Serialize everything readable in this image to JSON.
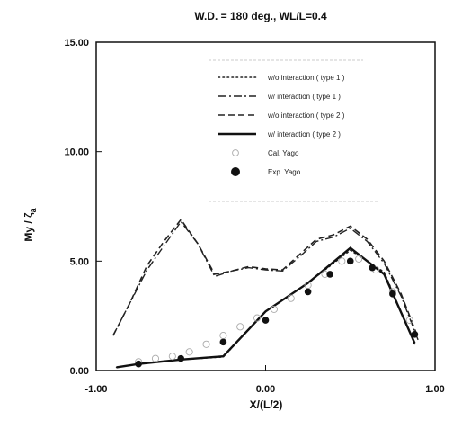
{
  "chart_data": {
    "type": "line",
    "title": "W.D. = 180 deg., WL/L=0.4",
    "xlabel": "X/(L/2)",
    "ylabel_main": "My / ζ",
    "ylabel_sub": "a",
    "xlim": [
      -1.0,
      1.0
    ],
    "ylim": [
      0.0,
      15.0
    ],
    "x_ticks": [
      -1.0,
      0.0,
      1.0
    ],
    "x_tick_labels": [
      "-1.00",
      "0.00",
      "1.00"
    ],
    "y_ticks": [
      0,
      5,
      10,
      15
    ],
    "y_tick_labels": [
      "0.00",
      "5.00",
      "10.00",
      "15.00"
    ],
    "grid": false,
    "legend_position": "top-right",
    "series": [
      {
        "name": "w/o interaction ( type 1 )",
        "style": "dotted",
        "x": [
          -0.88,
          -0.75,
          -0.5,
          -0.25,
          0.0,
          0.25,
          0.5,
          0.7,
          0.88
        ],
        "y": [
          0.15,
          0.3,
          0.5,
          0.62,
          2.7,
          4.0,
          5.5,
          4.5,
          1.2
        ]
      },
      {
        "name": "w/ interaction ( type 1 )",
        "style": "dashdot",
        "x": [
          -0.9,
          -0.8,
          -0.7,
          -0.6,
          -0.5,
          -0.4,
          -0.3,
          -0.2,
          -0.1,
          0.0,
          0.1,
          0.2,
          0.3,
          0.4,
          0.5,
          0.6,
          0.7,
          0.8,
          0.9
        ],
        "y": [
          1.6,
          3.1,
          4.6,
          5.7,
          6.8,
          5.8,
          4.3,
          4.55,
          4.7,
          4.6,
          4.55,
          5.2,
          5.9,
          6.1,
          6.5,
          5.9,
          4.9,
          3.4,
          1.4
        ]
      },
      {
        "name": "w/o interaction ( type 2 )",
        "style": "dashed",
        "x": [
          -0.9,
          -0.8,
          -0.7,
          -0.6,
          -0.5,
          -0.4,
          -0.3,
          -0.2,
          -0.1,
          0.0,
          0.1,
          0.2,
          0.3,
          0.4,
          0.5,
          0.6,
          0.7,
          0.8,
          0.9
        ],
        "y": [
          1.6,
          3.1,
          4.8,
          5.9,
          6.9,
          5.8,
          4.4,
          4.55,
          4.75,
          4.65,
          4.6,
          5.3,
          6.0,
          6.2,
          6.6,
          6.0,
          5.0,
          3.5,
          1.5
        ]
      },
      {
        "name": "w/ interaction ( type 2 )",
        "style": "solid",
        "x": [
          -0.88,
          -0.75,
          -0.5,
          -0.25,
          0.0,
          0.25,
          0.5,
          0.7,
          0.88
        ],
        "y": [
          0.15,
          0.3,
          0.5,
          0.65,
          2.7,
          4.0,
          5.6,
          4.4,
          1.25
        ]
      },
      {
        "name": "Cal. Yago",
        "style": "open-circle",
        "x": [
          -0.75,
          -0.65,
          -0.55,
          -0.45,
          -0.35,
          -0.25,
          -0.15,
          -0.05,
          0.05,
          0.15,
          0.25,
          0.35,
          0.45,
          0.55,
          0.65,
          0.75,
          0.85
        ],
        "y": [
          0.4,
          0.55,
          0.65,
          0.85,
          1.2,
          1.6,
          2.0,
          2.4,
          2.8,
          3.3,
          3.9,
          4.4,
          5.0,
          5.1,
          4.6,
          3.6,
          2.3
        ]
      },
      {
        "name": "Exp. Yago",
        "style": "filled-circle",
        "x": [
          -0.75,
          -0.5,
          -0.25,
          0.0,
          0.25,
          0.38,
          0.5,
          0.63,
          0.75,
          0.88
        ],
        "y": [
          0.3,
          0.55,
          1.3,
          2.3,
          3.6,
          4.4,
          5.0,
          4.7,
          3.5,
          1.65
        ]
      }
    ]
  }
}
